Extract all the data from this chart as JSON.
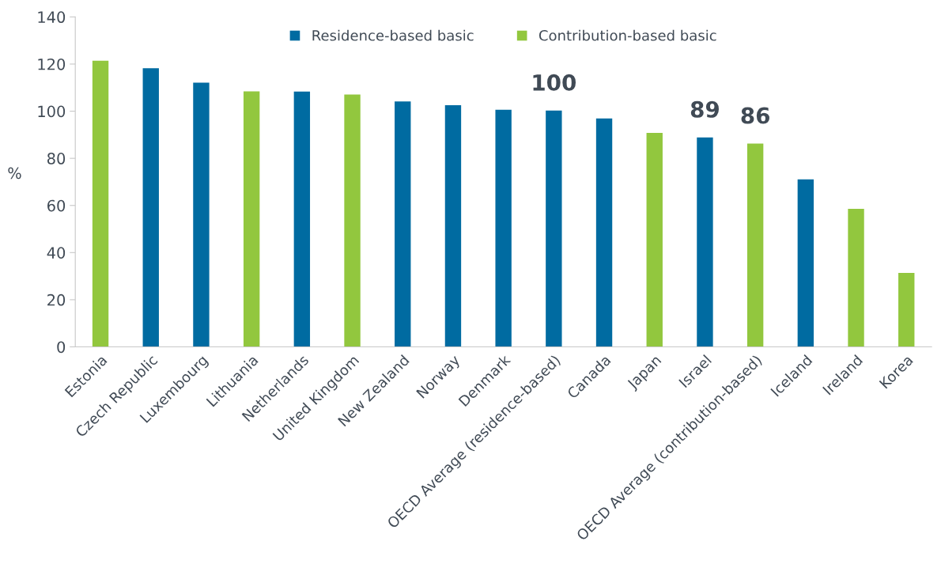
{
  "chart_data": {
    "type": "bar",
    "ylabel": "%",
    "categories": [
      "Estonia",
      "Czech Republic",
      "Luxembourg",
      "Lithuania",
      "Netherlands",
      "United Kingdom",
      "New Zealand",
      "Norway",
      "Denmark",
      "OECD Average (residence-based)",
      "Canada",
      "Japan",
      "Israel",
      "OECD Average (contribution-based)",
      "Iceland",
      "Ireland",
      "Korea"
    ],
    "series": [
      {
        "name": "Residence-based basic",
        "color": "#006ba1",
        "values": [
          null,
          118.2,
          112.1,
          null,
          108.3,
          null,
          104.1,
          102.5,
          100.6,
          100.3,
          96.9,
          null,
          88.9,
          null,
          71.1,
          null,
          null
        ],
        "value_labels": [
          null,
          null,
          null,
          null,
          null,
          null,
          null,
          null,
          null,
          "100",
          null,
          null,
          "89",
          null,
          null,
          null,
          null
        ]
      },
      {
        "name": "Contribution-based basic",
        "color": "#92c73e",
        "values": [
          121.4,
          null,
          null,
          108.4,
          null,
          107.1,
          null,
          null,
          null,
          null,
          null,
          90.8,
          null,
          86.3,
          null,
          58.6,
          31.4
        ],
        "value_labels": [
          null,
          null,
          null,
          null,
          null,
          null,
          null,
          null,
          null,
          null,
          null,
          null,
          null,
          "86",
          null,
          null,
          null
        ]
      }
    ],
    "ylim": [
      0,
      140
    ],
    "yticks": [
      0,
      20,
      40,
      60,
      80,
      100,
      120,
      140
    ],
    "grid": false,
    "legend": "top"
  }
}
